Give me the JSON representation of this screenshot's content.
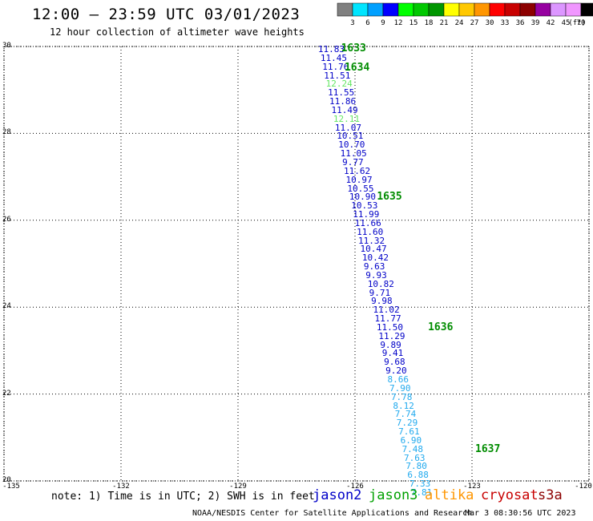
{
  "header": {
    "title": "12:00 – 23:59 UTC 03/01/2023",
    "subtitle": "12 hour collection of altimeter wave heights"
  },
  "colorbar": {
    "unit": "(ft)",
    "ticks": [
      "3",
      "6",
      "9",
      "12",
      "15",
      "18",
      "21",
      "24",
      "27",
      "30",
      "33",
      "36",
      "39",
      "42",
      "45",
      "70"
    ],
    "colors": [
      "#808080",
      "#00e5ff",
      "#00a0ff",
      "#0000ff",
      "#00ff00",
      "#00c800",
      "#009600",
      "#ffff00",
      "#ffc800",
      "#ff9600",
      "#ff0000",
      "#c80000",
      "#8c0000",
      "#9600a0",
      "#dc96ff",
      "#f096ff",
      "#000000"
    ]
  },
  "map": {
    "lat_labels": [
      "30",
      "28",
      "26",
      "24",
      "22",
      "20"
    ],
    "lon_labels": [
      "-135",
      "-132",
      "-129",
      "-126",
      "-123",
      "-120"
    ]
  },
  "chart_data": {
    "type": "scatter",
    "title": "12:00 – 23:59 UTC 03/01/2023",
    "subtitle": "12 hour collection of altimeter wave heights",
    "xlabel": "",
    "ylabel": "",
    "xlim": [
      -135,
      -120
    ],
    "ylim": [
      20,
      30
    ],
    "grid": true,
    "series": [
      {
        "name": "jason3",
        "points": [
          {
            "lon": -126.7,
            "lat": 29.98,
            "swh": "11.83",
            "color": "#0000c8"
          },
          {
            "lon": -126.64,
            "lat": 29.78,
            "swh": "11.45",
            "color": "#0000c8"
          },
          {
            "lon": -126.59,
            "lat": 29.58,
            "swh": "11.76",
            "color": "#0000c8"
          },
          {
            "lon": -126.55,
            "lat": 29.38,
            "swh": "11.51",
            "color": "#0000c8"
          },
          {
            "lon": -126.5,
            "lat": 29.18,
            "swh": "12.24",
            "color": "#64e664"
          },
          {
            "lon": -126.45,
            "lat": 28.98,
            "swh": "11.55",
            "color": "#0000c8"
          },
          {
            "lon": -126.41,
            "lat": 28.78,
            "swh": "11.86",
            "color": "#0000c8"
          },
          {
            "lon": -126.36,
            "lat": 28.58,
            "swh": "11.49",
            "color": "#0000c8"
          },
          {
            "lon": -126.31,
            "lat": 28.38,
            "swh": "12.11",
            "color": "#64e664"
          },
          {
            "lon": -126.27,
            "lat": 28.18,
            "swh": "11.07",
            "color": "#0000c8"
          },
          {
            "lon": -126.22,
            "lat": 27.98,
            "swh": "10.51",
            "color": "#0000c8"
          },
          {
            "lon": -126.18,
            "lat": 27.78,
            "swh": "10.70",
            "color": "#0000c8"
          },
          {
            "lon": -126.13,
            "lat": 27.58,
            "swh": "11.05",
            "color": "#0000c8"
          },
          {
            "lon": -126.08,
            "lat": 27.38,
            "swh": "9.77",
            "color": "#0000c8"
          },
          {
            "lon": -126.04,
            "lat": 27.18,
            "swh": "11.62",
            "color": "#0000c8"
          },
          {
            "lon": -125.99,
            "lat": 26.98,
            "swh": "10.97",
            "color": "#0000c8"
          },
          {
            "lon": -125.95,
            "lat": 26.78,
            "swh": "10.55",
            "color": "#0000c8"
          },
          {
            "lon": -125.9,
            "lat": 26.58,
            "swh": "10.90",
            "color": "#0000c8"
          },
          {
            "lon": -125.85,
            "lat": 26.38,
            "swh": "10.53",
            "color": "#0000c8"
          },
          {
            "lon": -125.81,
            "lat": 26.18,
            "swh": "11.99",
            "color": "#0000c8"
          },
          {
            "lon": -125.76,
            "lat": 25.98,
            "swh": "11.66",
            "color": "#0000c8"
          },
          {
            "lon": -125.71,
            "lat": 25.78,
            "swh": "11.60",
            "color": "#0000c8"
          },
          {
            "lon": -125.67,
            "lat": 25.58,
            "swh": "11.32",
            "color": "#0000c8"
          },
          {
            "lon": -125.62,
            "lat": 25.38,
            "swh": "10.47",
            "color": "#0000c8"
          },
          {
            "lon": -125.57,
            "lat": 25.18,
            "swh": "10.42",
            "color": "#0000c8"
          },
          {
            "lon": -125.53,
            "lat": 24.98,
            "swh": "9.63",
            "color": "#0000c8"
          },
          {
            "lon": -125.48,
            "lat": 24.78,
            "swh": "9.93",
            "color": "#0000c8"
          },
          {
            "lon": -125.43,
            "lat": 24.58,
            "swh": "10.82",
            "color": "#0000c8"
          },
          {
            "lon": -125.39,
            "lat": 24.38,
            "swh": "9.71",
            "color": "#0000c8"
          },
          {
            "lon": -125.34,
            "lat": 24.18,
            "swh": "9.98",
            "color": "#0000c8"
          },
          {
            "lon": -125.29,
            "lat": 23.98,
            "swh": "11.02",
            "color": "#0000c8"
          },
          {
            "lon": -125.25,
            "lat": 23.78,
            "swh": "11.77",
            "color": "#0000c8"
          },
          {
            "lon": -125.2,
            "lat": 23.58,
            "swh": "11.50",
            "color": "#0000c8"
          },
          {
            "lon": -125.15,
            "lat": 23.38,
            "swh": "11.29",
            "color": "#0000c8"
          },
          {
            "lon": -125.11,
            "lat": 23.18,
            "swh": "9.89",
            "color": "#0000c8"
          },
          {
            "lon": -125.06,
            "lat": 22.98,
            "swh": "9.41",
            "color": "#0000c8"
          },
          {
            "lon": -125.01,
            "lat": 22.78,
            "swh": "9.68",
            "color": "#0000c8"
          },
          {
            "lon": -124.97,
            "lat": 22.58,
            "swh": "9.20",
            "color": "#0000c8"
          },
          {
            "lon": -124.92,
            "lat": 22.38,
            "swh": "8.66",
            "color": "#22aaee"
          },
          {
            "lon": -124.87,
            "lat": 22.18,
            "swh": "7.90",
            "color": "#22aaee"
          },
          {
            "lon": -124.83,
            "lat": 21.98,
            "swh": "7.78",
            "color": "#22aaee"
          },
          {
            "lon": -124.78,
            "lat": 21.78,
            "swh": "8.12",
            "color": "#22aaee"
          },
          {
            "lon": -124.73,
            "lat": 21.58,
            "swh": "7.74",
            "color": "#22aaee"
          },
          {
            "lon": -124.69,
            "lat": 21.38,
            "swh": "7.29",
            "color": "#22aaee"
          },
          {
            "lon": -124.64,
            "lat": 21.18,
            "swh": "7.61",
            "color": "#22aaee"
          },
          {
            "lon": -124.59,
            "lat": 20.98,
            "swh": "6.90",
            "color": "#22aaee"
          },
          {
            "lon": -124.55,
            "lat": 20.78,
            "swh": "7.48",
            "color": "#22aaee"
          },
          {
            "lon": -124.5,
            "lat": 20.58,
            "swh": "7.63",
            "color": "#22aaee"
          },
          {
            "lon": -124.45,
            "lat": 20.38,
            "swh": "7.80",
            "color": "#22aaee"
          },
          {
            "lon": -124.41,
            "lat": 20.18,
            "swh": "6.88",
            "color": "#22aaee"
          },
          {
            "lon": -124.36,
            "lat": 19.98,
            "swh": "7.33",
            "color": "#22aaee"
          },
          {
            "lon": -124.32,
            "lat": 19.78,
            "swh": "7.81",
            "color": "#22aaee"
          }
        ]
      }
    ],
    "pass_labels": [
      {
        "time": "1633",
        "lon": -126.07,
        "lat": 30.0
      },
      {
        "time": "1634",
        "lon": -125.98,
        "lat": 29.55
      },
      {
        "time": "1635",
        "lon": -125.15,
        "lat": 26.58
      },
      {
        "time": "1636",
        "lon": -123.84,
        "lat": 23.58
      },
      {
        "time": "1637",
        "lon": -122.63,
        "lat": 20.78
      }
    ]
  },
  "footer": {
    "note": "note: 1) Time is in UTC; 2) SWH is in feet",
    "satellites": [
      {
        "name": "jason2",
        "color": "#0000c8"
      },
      {
        "name": "jason3",
        "color": "#00a000"
      },
      {
        "name": "altika",
        "color": "#ff9600"
      },
      {
        "name": "cryosat",
        "color": "#c80000"
      },
      {
        "name": "s3a",
        "color": "#8c0000"
      }
    ],
    "credit": "NOAA/NESDIS Center for Satellite Applications and Research",
    "timestamp": "Mar  3 08:30:56 UTC 2023"
  }
}
